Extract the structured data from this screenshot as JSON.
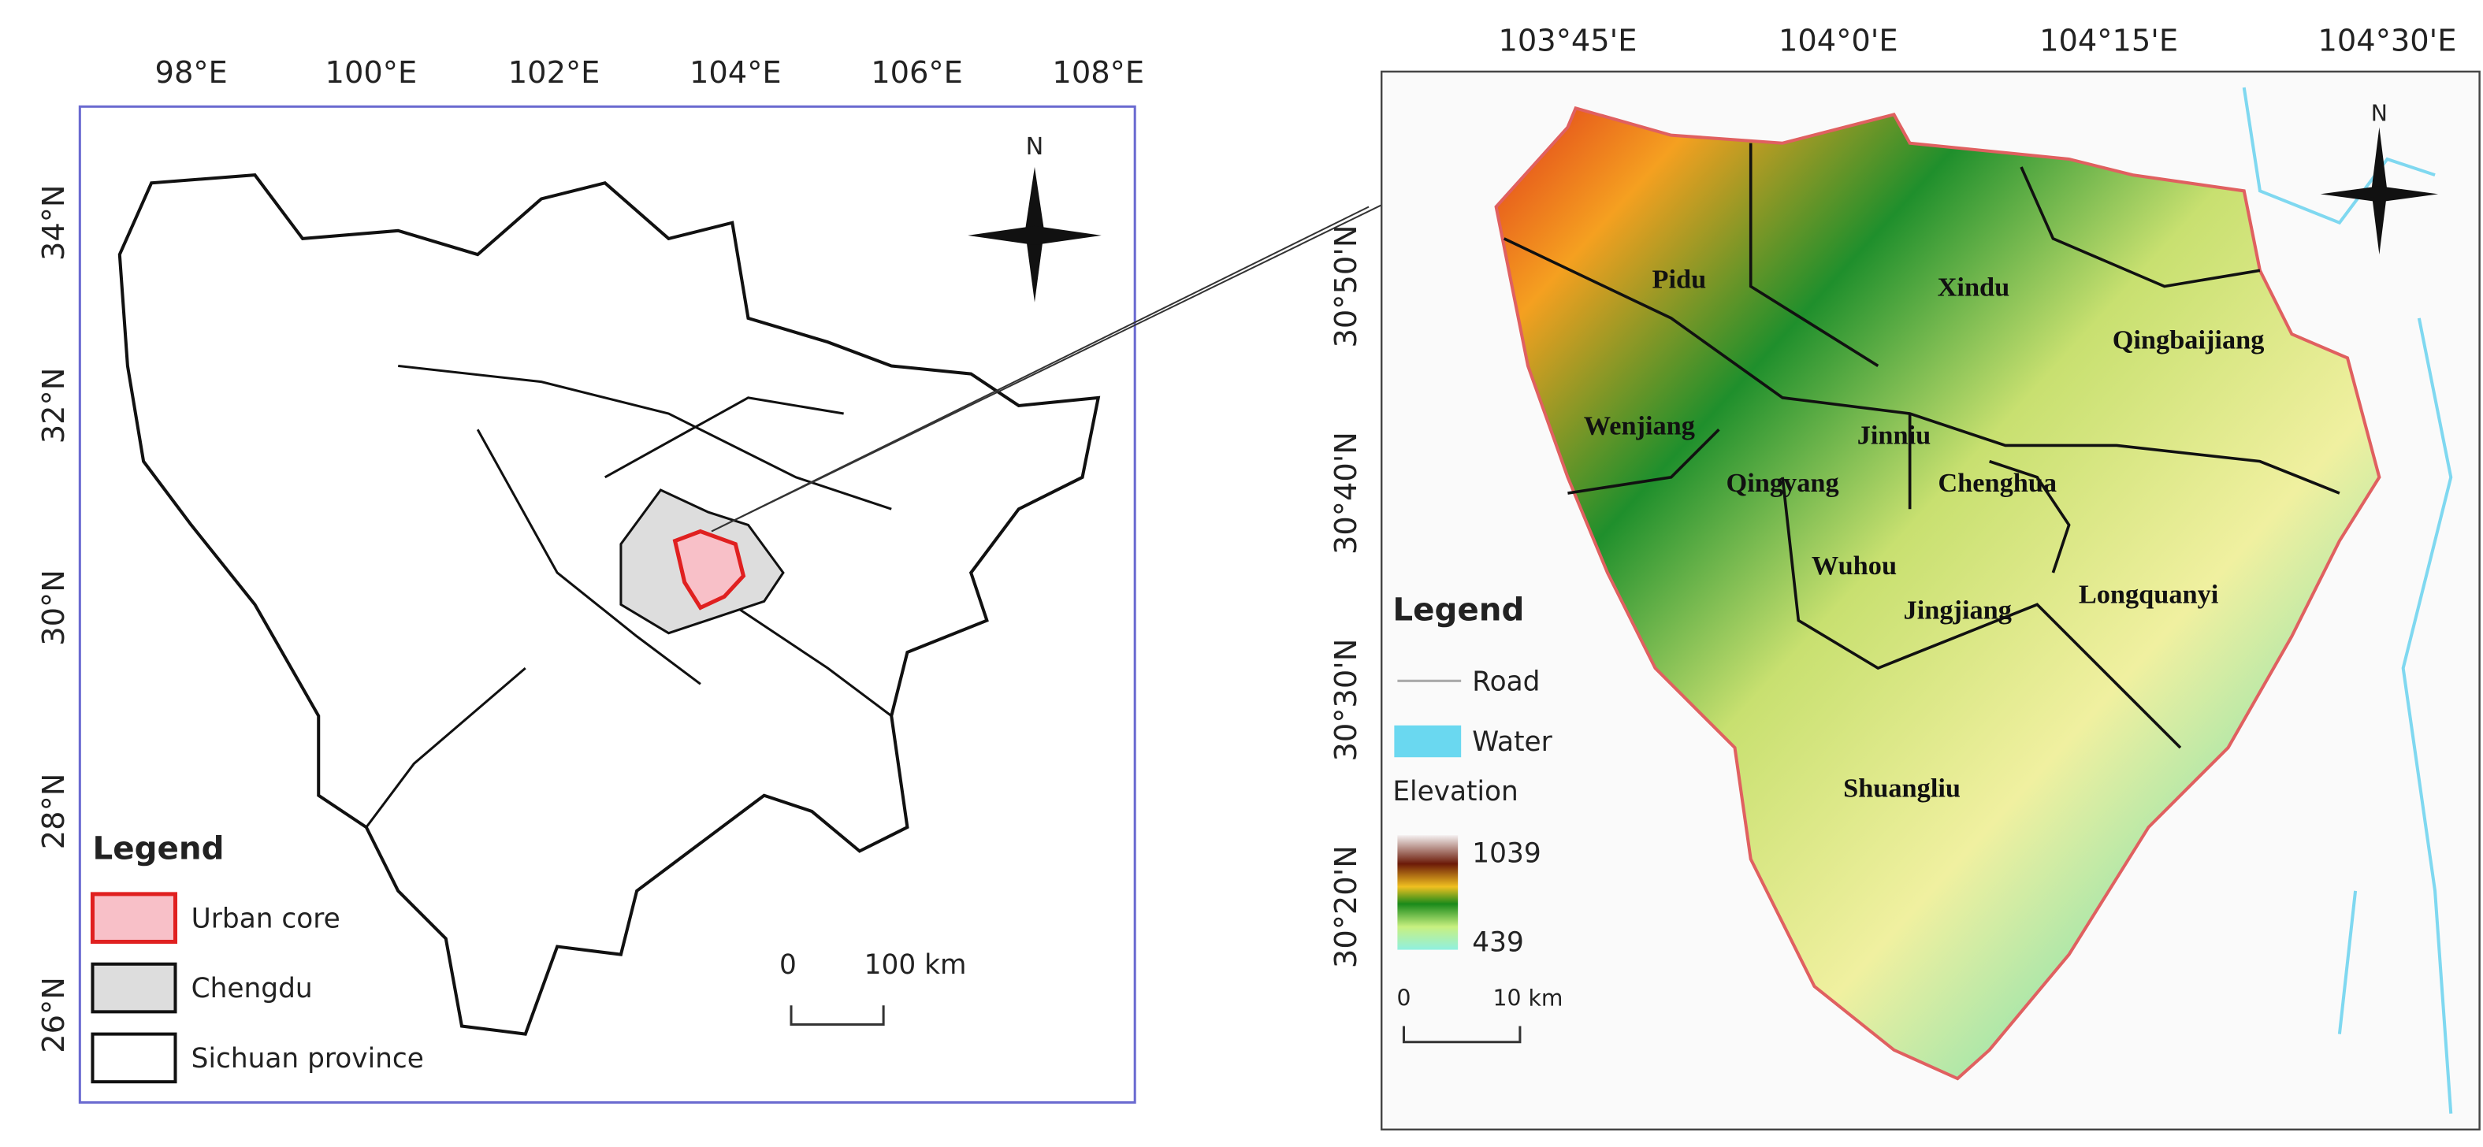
{
  "left_map": {
    "lon_labels": [
      "98°E",
      "100°E",
      "102°E",
      "104°E",
      "106°E",
      "108°E"
    ],
    "lat_labels": [
      "34°N",
      "32°N",
      "30°N",
      "28°N",
      "26°N"
    ],
    "north": "N",
    "legend": {
      "title": "Legend",
      "items": [
        "Urban core",
        "Chengdu",
        "Sichuan province"
      ]
    },
    "scale": {
      "start": "0",
      "end": "100 km"
    }
  },
  "right_map": {
    "lon_labels": [
      "103°45'E",
      "104°0'E",
      "104°15'E",
      "104°30'E"
    ],
    "lat_labels": [
      "30°50'N",
      "30°40'N",
      "30°30'N",
      "30°20'N"
    ],
    "north": "N",
    "districts": [
      "Pidu",
      "Xindu",
      "Qingbaijiang",
      "Wenjiang",
      "Jinniu",
      "Qingyang",
      "Chenghua",
      "Wuhou",
      "Jingjiang",
      "Longquanyi",
      "Shuangliu"
    ],
    "legend": {
      "title": "Legend",
      "road": "Road",
      "water": "Water",
      "elevation": "Elevation",
      "max": "1039",
      "min": "439"
    },
    "scale": {
      "start": "0",
      "end": "10 km"
    }
  }
}
